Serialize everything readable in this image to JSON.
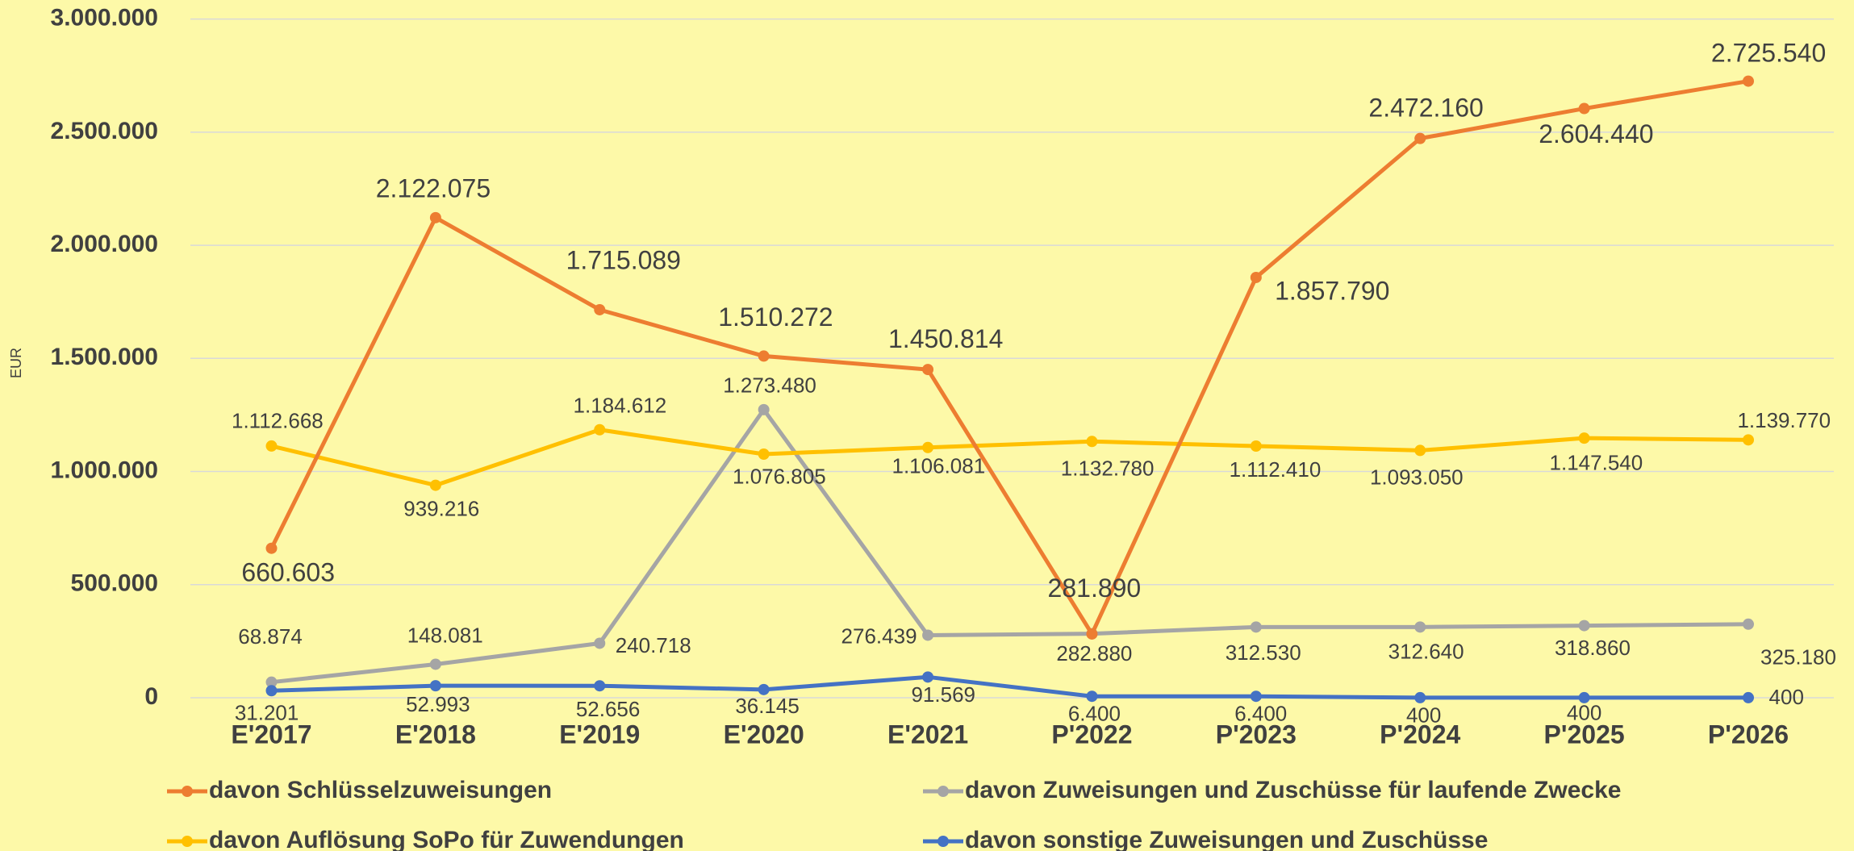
{
  "chart_data": {
    "type": "line",
    "y_label": "EUR",
    "categories": [
      "E'2017",
      "E'2018",
      "E'2019",
      "E'2020",
      "E'2021",
      "P'2022",
      "P'2023",
      "P'2024",
      "P'2025",
      "P'2026"
    ],
    "series": [
      {
        "name": "davon Schlüsselzuweisungen",
        "color": "#ED7D31",
        "values": [
          660603,
          2122075,
          1715089,
          1510272,
          1450814,
          281890,
          1857790,
          2472160,
          2604440,
          2725540
        ],
        "value_labels": [
          "660.603",
          "2.122.075",
          "1.715.089",
          "1.510.272",
          "1.450.814",
          "281.890",
          "1.857.790",
          "2.472.160",
          "2.604.440",
          "2.725.540"
        ]
      },
      {
        "name": "davon Zuweisungen und Zuschüsse für laufende Zwecke",
        "color": "#A5A5A5",
        "values": [
          68874,
          148081,
          240718,
          1273480,
          276439,
          282880,
          312530,
          312640,
          318860,
          325180
        ],
        "value_labels": [
          "68.874",
          "148.081",
          "240.718",
          "1.273.480",
          "276.439",
          "282.880",
          "312.530",
          "312.640",
          "318.860",
          "325.180"
        ]
      },
      {
        "name": "davon Auflösung SoPo für Zuwendungen",
        "color": "#FFC000",
        "values": [
          1112668,
          939216,
          1184612,
          1076805,
          1106081,
          1132780,
          1112410,
          1093050,
          1147540,
          1139770
        ],
        "value_labels": [
          "1.112.668",
          "939.216",
          "1.184.612",
          "1.076.805",
          "1.106.081",
          "1.132.780",
          "1.112.410",
          "1.093.050",
          "1.147.540",
          "1.139.770"
        ]
      },
      {
        "name": "davon sonstige Zuweisungen und Zuschüsse",
        "color": "#4472C4",
        "values": [
          31201,
          52993,
          52656,
          36145,
          91569,
          6400,
          6400,
          400,
          400,
          400
        ],
        "value_labels": [
          "31.201",
          "52.993",
          "52.656",
          "36.145",
          "91.569",
          "6.400",
          "6.400",
          "400",
          "400",
          "400"
        ]
      }
    ],
    "ylim": [
      0,
      3000000
    ],
    "yticks": [
      0,
      {
        "value": 500000,
        "label": "500.000"
      },
      {
        "value": 1000000,
        "label": "1.000.000"
      },
      {
        "value": 1500000,
        "label": "1.500.000"
      },
      {
        "value": 2000000,
        "label": "2.000.000"
      },
      {
        "value": 2500000,
        "label": "2.500.000"
      },
      {
        "value": 3000000,
        "label": "3.000.000"
      }
    ],
    "grid": true,
    "legend": "bottom"
  }
}
